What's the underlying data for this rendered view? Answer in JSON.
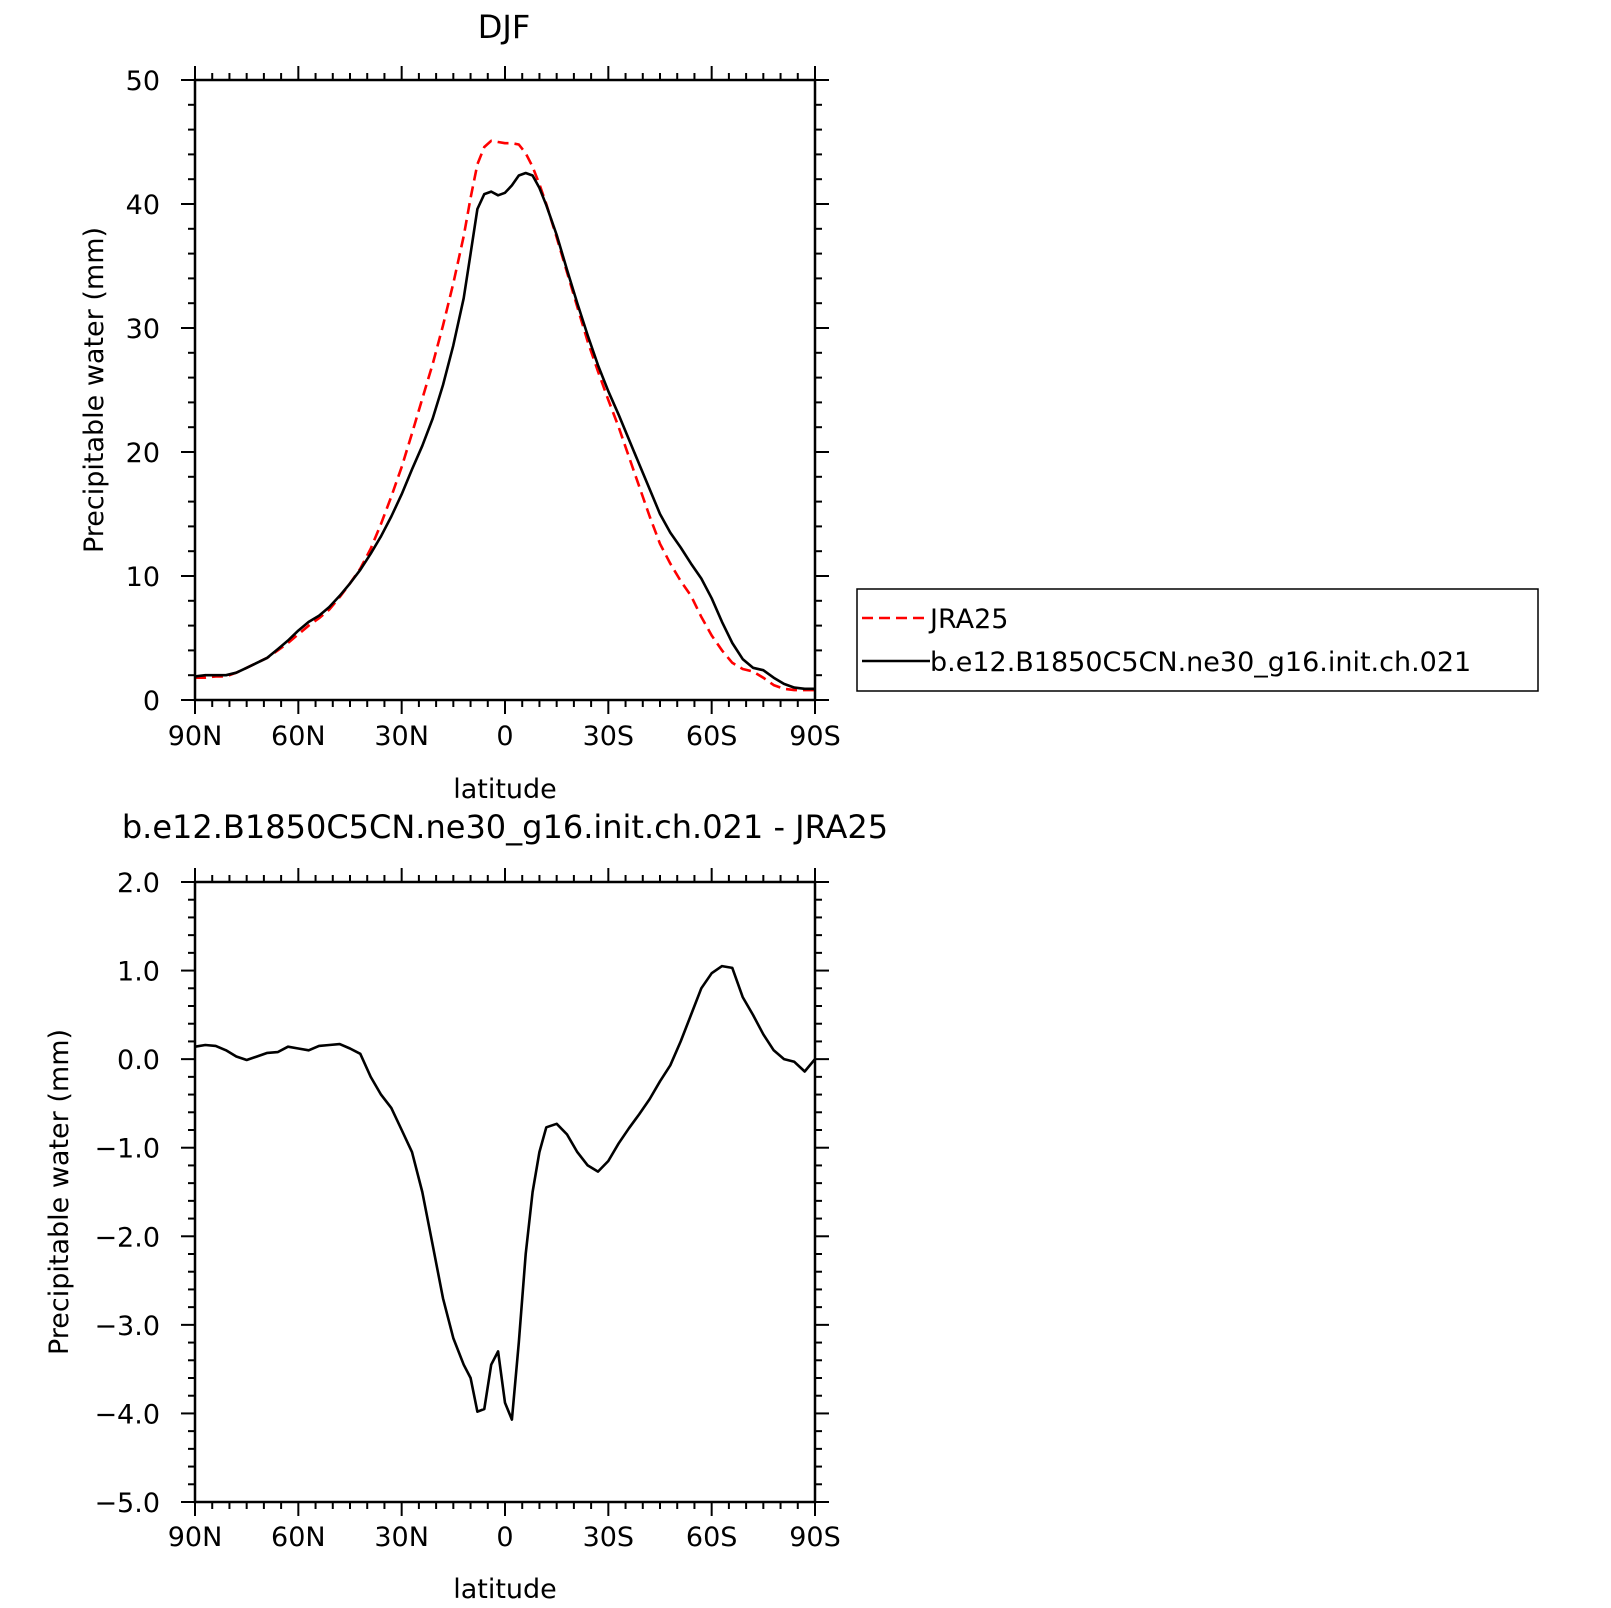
{
  "colors": {
    "axis": "#000000",
    "series_solid": "#000000",
    "series_dashed": "#ff0000",
    "background": "#ffffff"
  },
  "chart_data": [
    {
      "type": "line",
      "title": "DJF",
      "xlabel": "latitude",
      "ylabel": "Precipitable water (mm)",
      "xlim": [
        90,
        -90
      ],
      "ylim": [
        0,
        50
      ],
      "grid": false,
      "x_unit_note": "latitude in degrees, north positive",
      "xticks": [
        {
          "value": 90,
          "label": "90N"
        },
        {
          "value": 60,
          "label": "60N"
        },
        {
          "value": 30,
          "label": "30N"
        },
        {
          "value": 0,
          "label": "0"
        },
        {
          "value": -30,
          "label": "30S"
        },
        {
          "value": -60,
          "label": "60S"
        },
        {
          "value": -90,
          "label": "90S"
        }
      ],
      "yticks": [
        {
          "value": 0,
          "label": "0"
        },
        {
          "value": 10,
          "label": "10"
        },
        {
          "value": 20,
          "label": "20"
        },
        {
          "value": 30,
          "label": "30"
        },
        {
          "value": 40,
          "label": "40"
        },
        {
          "value": 50,
          "label": "50"
        }
      ],
      "legend": {
        "placement": "right",
        "entries": [
          {
            "label": "JRA25",
            "style": "dashed",
            "color": "#ff0000"
          },
          {
            "label": "b.e12.B1850C5CN.ne30_g16.init.ch.021",
            "style": "solid",
            "color": "#000000"
          }
        ]
      },
      "series": [
        {
          "name": "JRA25",
          "style": "dashed",
          "color": "#ff0000",
          "x": [
            90,
            87,
            84,
            81,
            78,
            75,
            72,
            69,
            66,
            63,
            60,
            57,
            54,
            51,
            48,
            45,
            42,
            39,
            36,
            33,
            30,
            27,
            24,
            21,
            18,
            15,
            12,
            10,
            8,
            6,
            4,
            2,
            0,
            -2,
            -4,
            -6,
            -8,
            -10,
            -12,
            -15,
            -18,
            -21,
            -24,
            -27,
            -30,
            -33,
            -36,
            -39,
            -42,
            -45,
            -48,
            -51,
            -54,
            -57,
            -60,
            -63,
            -66,
            -69,
            -72,
            -75,
            -78,
            -81,
            -84,
            -87,
            -90
          ],
          "values": [
            1.8,
            1.8,
            1.9,
            1.9,
            2.2,
            2.6,
            3.0,
            3.4,
            4.0,
            4.6,
            5.3,
            6.0,
            6.6,
            7.3,
            8.3,
            9.4,
            10.6,
            12.2,
            14.2,
            16.4,
            18.8,
            21.5,
            24.3,
            27.1,
            30.2,
            33.6,
            37.4,
            40.5,
            43.2,
            44.6,
            45.1,
            45.0,
            44.9,
            44.9,
            44.8,
            44.1,
            43.0,
            41.6,
            40.0,
            37.3,
            34.5,
            31.7,
            28.9,
            26.5,
            24.2,
            22.0,
            19.6,
            17.2,
            14.8,
            12.6,
            11.0,
            9.6,
            8.4,
            6.7,
            5.2,
            4.0,
            3.0,
            2.5,
            2.3,
            1.8,
            1.2,
            0.9,
            0.8,
            0.8,
            0.8
          ]
        },
        {
          "name": "b.e12.B1850C5CN.ne30_g16.init.ch.021",
          "style": "solid",
          "color": "#000000",
          "x": [
            90,
            87,
            84,
            81,
            78,
            75,
            72,
            69,
            66,
            63,
            60,
            57,
            54,
            51,
            48,
            45,
            42,
            39,
            36,
            33,
            30,
            27,
            24,
            21,
            18,
            15,
            12,
            10,
            8,
            6,
            4,
            2,
            0,
            -2,
            -4,
            -6,
            -8,
            -10,
            -12,
            -15,
            -18,
            -21,
            -24,
            -27,
            -30,
            -33,
            -36,
            -39,
            -42,
            -45,
            -48,
            -51,
            -54,
            -57,
            -60,
            -63,
            -66,
            -69,
            -72,
            -75,
            -78,
            -81,
            -84,
            -87,
            -90
          ],
          "values": [
            1.9,
            2.0,
            2.0,
            2.0,
            2.2,
            2.6,
            3.0,
            3.4,
            4.1,
            4.8,
            5.6,
            6.3,
            6.8,
            7.5,
            8.4,
            9.4,
            10.5,
            11.8,
            13.2,
            14.8,
            16.6,
            18.6,
            20.5,
            22.7,
            25.4,
            28.6,
            32.4,
            36.0,
            39.6,
            40.8,
            41.0,
            40.7,
            40.9,
            41.5,
            42.3,
            42.5,
            42.3,
            41.3,
            39.9,
            37.5,
            34.7,
            32.0,
            29.4,
            27.0,
            24.9,
            23.0,
            21.0,
            19.0,
            17.0,
            15.0,
            13.5,
            12.3,
            11.0,
            9.8,
            8.2,
            6.3,
            4.6,
            3.3,
            2.6,
            2.4,
            1.8,
            1.3,
            1.0,
            0.9,
            0.9
          ]
        }
      ]
    },
    {
      "type": "line",
      "title": "b.e12.B1850C5CN.ne30_g16.init.ch.021 - JRA25",
      "xlabel": "latitude",
      "ylabel": "Precipitable water (mm)",
      "xlim": [
        90,
        -90
      ],
      "ylim": [
        -5,
        2
      ],
      "grid": false,
      "xticks": [
        {
          "value": 90,
          "label": "90N"
        },
        {
          "value": 60,
          "label": "60N"
        },
        {
          "value": 30,
          "label": "30N"
        },
        {
          "value": 0,
          "label": "0"
        },
        {
          "value": -30,
          "label": "30S"
        },
        {
          "value": -60,
          "label": "60S"
        },
        {
          "value": -90,
          "label": "90S"
        }
      ],
      "yticks": [
        {
          "value": 2,
          "label": "2.0"
        },
        {
          "value": 1,
          "label": "1.0"
        },
        {
          "value": 0,
          "label": "0.0"
        },
        {
          "value": -1,
          "label": "-1.0"
        },
        {
          "value": -2,
          "label": "-2.0"
        },
        {
          "value": -3,
          "label": "-3.0"
        },
        {
          "value": -4,
          "label": "-4.0"
        },
        {
          "value": -5,
          "label": "-5.0"
        }
      ],
      "series": [
        {
          "style": "solid",
          "color": "#000000",
          "x": [
            90,
            87,
            84,
            81,
            78,
            75,
            72,
            69,
            66,
            63,
            60,
            57,
            54,
            51,
            48,
            45,
            42,
            39,
            36,
            33,
            30,
            27,
            24,
            21,
            18,
            15,
            12,
            10,
            8,
            6,
            4,
            2,
            0,
            -2,
            -4,
            -6,
            -8,
            -10,
            -12,
            -15,
            -18,
            -21,
            -24,
            -27,
            -30,
            -33,
            -36,
            -39,
            -42,
            -45,
            -48,
            -51,
            -54,
            -57,
            -60,
            -63,
            -66,
            -69,
            -72,
            -75,
            -78,
            -81,
            -84,
            -87,
            -90
          ],
          "values": [
            0.14,
            0.16,
            0.15,
            0.1,
            0.03,
            -0.01,
            0.03,
            0.07,
            0.08,
            0.14,
            0.12,
            0.1,
            0.15,
            0.16,
            0.17,
            0.12,
            0.06,
            -0.2,
            -0.4,
            -0.55,
            -0.8,
            -1.05,
            -1.5,
            -2.1,
            -2.7,
            -3.15,
            -3.45,
            -3.6,
            -3.98,
            -3.95,
            -3.45,
            -3.3,
            -3.88,
            -4.07,
            -3.2,
            -2.2,
            -1.5,
            -1.05,
            -0.77,
            -0.73,
            -0.85,
            -1.05,
            -1.2,
            -1.27,
            -1.15,
            -0.95,
            -0.78,
            -0.62,
            -0.45,
            -0.25,
            -0.07,
            0.2,
            0.5,
            0.8,
            0.97,
            1.05,
            1.03,
            0.7,
            0.5,
            0.28,
            0.1,
            0.0,
            -0.03,
            -0.14,
            0.0
          ]
        }
      ]
    }
  ]
}
